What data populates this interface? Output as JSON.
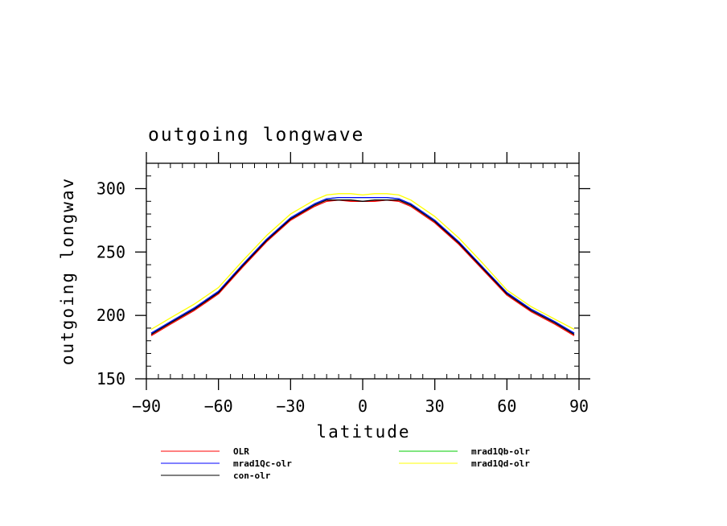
{
  "chart_data": {
    "type": "line",
    "title": "outgoing longwave",
    "xlabel": "latitude",
    "ylabel": "outgoing longwav",
    "xlim": [
      -90,
      90
    ],
    "ylim": [
      150,
      320
    ],
    "xticks": [
      -90,
      -60,
      -30,
      0,
      30,
      60,
      90
    ],
    "yticks": [
      150,
      200,
      250,
      300
    ],
    "x": [
      -88,
      -80,
      -70,
      -60,
      -50,
      -40,
      -30,
      -20,
      -15,
      -10,
      -5,
      0,
      5,
      10,
      15,
      20,
      30,
      40,
      50,
      60,
      70,
      80,
      88
    ],
    "series": [
      {
        "name": "OLR",
        "color": "#ff0000",
        "values": [
          184,
          193,
          204,
          217,
          238,
          258,
          275,
          286,
          290,
          291,
          290,
          290,
          290,
          291,
          290,
          286,
          273,
          256,
          236,
          216,
          203,
          193,
          184
        ]
      },
      {
        "name": "mrad1Qb-olr",
        "color": "#00cc00",
        "values": [
          186,
          195,
          206,
          219,
          240,
          260,
          277,
          288,
          292,
          293,
          293,
          293,
          293,
          293,
          292,
          288,
          275,
          258,
          238,
          218,
          205,
          195,
          186
        ]
      },
      {
        "name": "mrad1Qc-olr",
        "color": "#0000ff",
        "values": [
          186,
          195,
          206,
          219,
          240,
          260,
          277,
          288,
          292,
          293,
          293,
          293,
          293,
          293,
          292,
          288,
          275,
          258,
          238,
          218,
          205,
          195,
          186
        ]
      },
      {
        "name": "mrad1Qd-olr",
        "color": "#ffff00",
        "values": [
          189,
          198,
          209,
          222,
          243,
          263,
          280,
          291,
          295,
          296,
          296,
          295,
          296,
          296,
          295,
          291,
          278,
          261,
          241,
          220,
          207,
          197,
          189
        ]
      },
      {
        "name": "con-olr",
        "color": "#000000",
        "values": [
          185,
          194,
          205,
          218,
          239,
          259,
          276,
          287,
          291,
          291,
          291,
          290,
          291,
          291,
          291,
          287,
          274,
          257,
          237,
          217,
          204,
          194,
          185
        ]
      }
    ],
    "legend": "bottom",
    "grid": false
  }
}
